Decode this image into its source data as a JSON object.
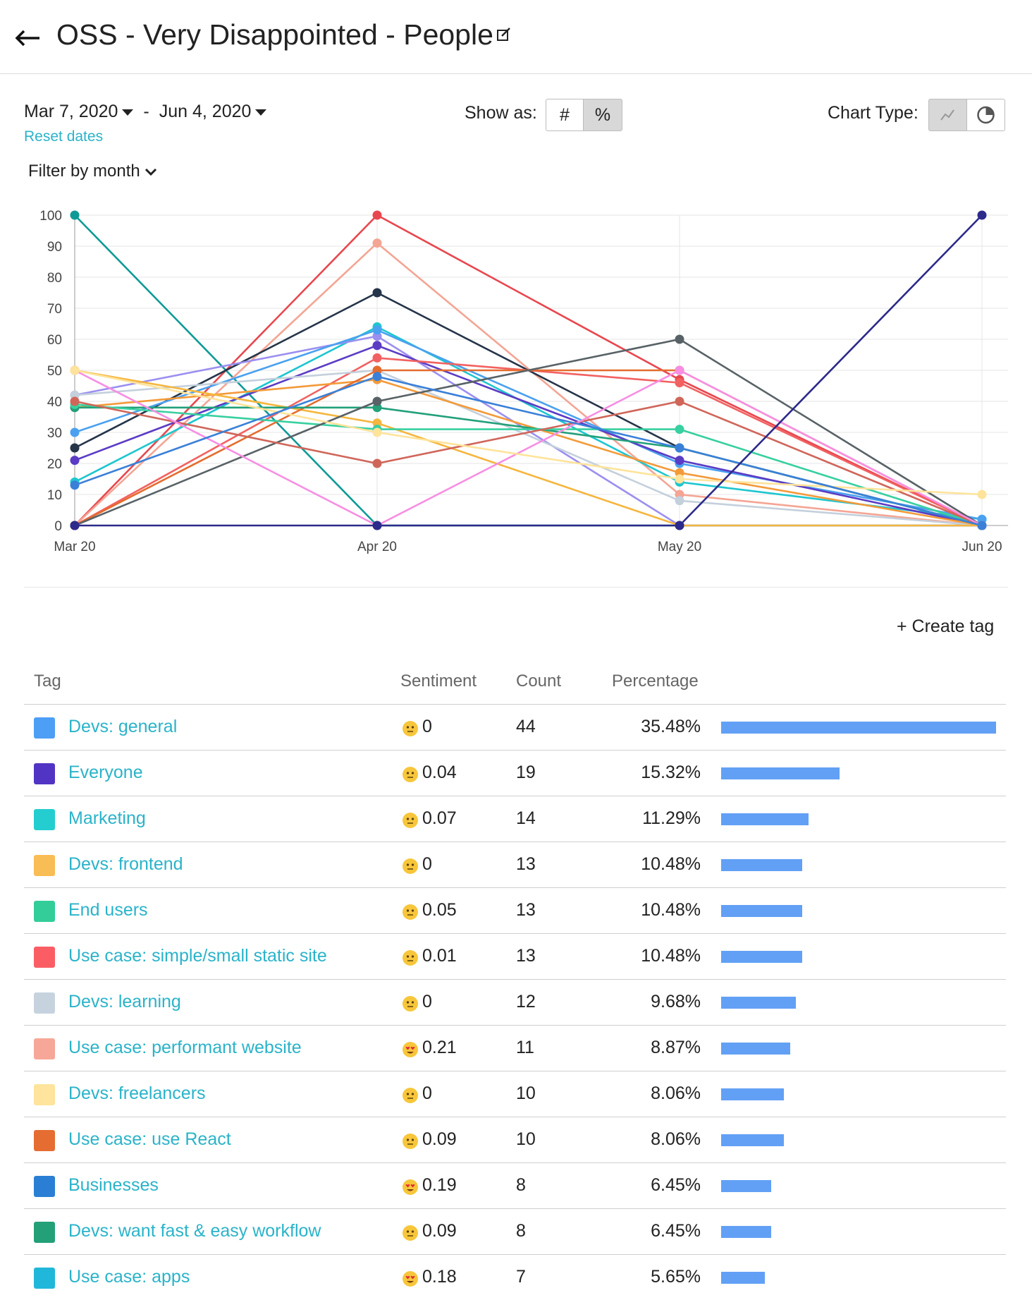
{
  "header": {
    "title": "OSS - Very Disappointed - People",
    "back_icon": "arrow-left-icon",
    "edit_icon": "edit-icon"
  },
  "controls": {
    "start_date": "Mar 7, 2020",
    "date_separator": "-",
    "end_date": "Jun 4, 2020",
    "reset_label": "Reset dates",
    "show_as_label": "Show as:",
    "show_as_options": [
      "#",
      "%"
    ],
    "show_as_selected": "%",
    "chart_type_label": "Chart Type:",
    "chart_type_options": [
      "line-chart-icon",
      "pie-chart-icon"
    ],
    "chart_type_selected": "line-chart-icon",
    "filter_label": "Filter by month"
  },
  "chart_data": {
    "type": "line",
    "x": [
      "Mar 20",
      "Apr 20",
      "May 20",
      "Jun 20"
    ],
    "ylim": [
      0,
      100
    ],
    "yticks": [
      0,
      10,
      20,
      30,
      40,
      50,
      60,
      70,
      80,
      90,
      100
    ],
    "grid": true,
    "series": [
      {
        "color": "#0e9a96",
        "values": [
          100,
          0,
          0,
          0
        ]
      },
      {
        "color": "#e8474f",
        "values": [
          0,
          100,
          47,
          0
        ]
      },
      {
        "color": "#f4a594",
        "values": [
          0,
          91,
          10,
          0
        ]
      },
      {
        "color": "#253449",
        "values": [
          25,
          75,
          25,
          0
        ]
      },
      {
        "color": "#1ec6cf",
        "values": [
          14,
          64,
          14,
          2
        ]
      },
      {
        "color": "#9b8ff0",
        "values": [
          42,
          61,
          0,
          0
        ]
      },
      {
        "color": "#4aa1f0",
        "values": [
          30,
          63,
          20,
          2
        ]
      },
      {
        "color": "#5b3cc4",
        "values": [
          21,
          58,
          21,
          0
        ]
      },
      {
        "color": "#f26161",
        "values": [
          0,
          54,
          46,
          0
        ]
      },
      {
        "color": "#c4d0dc",
        "values": [
          42,
          50,
          8,
          0
        ]
      },
      {
        "color": "#f39a3a",
        "values": [
          38,
          47,
          17,
          0
        ]
      },
      {
        "color": "#f5b63e",
        "values": [
          50,
          33,
          0,
          0
        ]
      },
      {
        "color": "#e46c2e",
        "values": [
          0,
          50,
          50,
          0
        ]
      },
      {
        "color": "#22a07a",
        "values": [
          38,
          38,
          25,
          0
        ]
      },
      {
        "color": "#38d0a0",
        "values": [
          39,
          31,
          31,
          0
        ]
      },
      {
        "color": "#586266",
        "values": [
          0,
          40,
          60,
          0
        ]
      },
      {
        "color": "#d0665a",
        "values": [
          40,
          20,
          40,
          0
        ]
      },
      {
        "color": "#f78ee3",
        "values": [
          50,
          0,
          50,
          0
        ]
      },
      {
        "color": "#fee39a",
        "values": [
          50,
          30,
          15,
          10
        ]
      },
      {
        "color": "#3a80d8",
        "values": [
          13,
          48,
          25,
          0
        ]
      },
      {
        "color": "#2c2a8a",
        "values": [
          0,
          0,
          0,
          100
        ]
      }
    ]
  },
  "table": {
    "create_tag_label": "+ Create tag",
    "headers": {
      "tag": "Tag",
      "sentiment": "Sentiment",
      "count": "Count",
      "percentage": "Percentage"
    },
    "rows": [
      {
        "tag": "Devs: general",
        "color": "#4d9ef5",
        "emoji": "neutral-face",
        "sentiment": "0",
        "count": "44",
        "percentage": "35.48%",
        "pct_value": 35.48
      },
      {
        "tag": "Everyone",
        "color": "#5134c4",
        "emoji": "neutral-face",
        "sentiment": "0.04",
        "count": "19",
        "percentage": "15.32%",
        "pct_value": 15.32
      },
      {
        "tag": "Marketing",
        "color": "#23cdd0",
        "emoji": "neutral-face",
        "sentiment": "0.07",
        "count": "14",
        "percentage": "11.29%",
        "pct_value": 11.29
      },
      {
        "tag": "Devs: frontend",
        "color": "#f9bd55",
        "emoji": "neutral-face",
        "sentiment": "0",
        "count": "13",
        "percentage": "10.48%",
        "pct_value": 10.48
      },
      {
        "tag": "End users",
        "color": "#33cd9a",
        "emoji": "neutral-face",
        "sentiment": "0.05",
        "count": "13",
        "percentage": "10.48%",
        "pct_value": 10.48
      },
      {
        "tag": "Use case: simple/small static site",
        "color": "#fa5e64",
        "emoji": "neutral-face",
        "sentiment": "0.01",
        "count": "13",
        "percentage": "10.48%",
        "pct_value": 10.48
      },
      {
        "tag": "Devs: learning",
        "color": "#c6d3df",
        "emoji": "neutral-face",
        "sentiment": "0",
        "count": "12",
        "percentage": "9.68%",
        "pct_value": 9.68
      },
      {
        "tag": "Use case: performant website",
        "color": "#f7a797",
        "emoji": "heart-eyes",
        "sentiment": "0.21",
        "count": "11",
        "percentage": "8.87%",
        "pct_value": 8.87
      },
      {
        "tag": "Devs: freelancers",
        "color": "#fee49c",
        "emoji": "neutral-face",
        "sentiment": "0",
        "count": "10",
        "percentage": "8.06%",
        "pct_value": 8.06
      },
      {
        "tag": "Use case: use React",
        "color": "#e56d31",
        "emoji": "neutral-face",
        "sentiment": "0.09",
        "count": "10",
        "percentage": "8.06%",
        "pct_value": 8.06
      },
      {
        "tag": "Businesses",
        "color": "#2a7fd4",
        "emoji": "heart-eyes",
        "sentiment": "0.19",
        "count": "8",
        "percentage": "6.45%",
        "pct_value": 6.45
      },
      {
        "tag": "Devs: want fast & easy workflow",
        "color": "#23a078",
        "emoji": "neutral-face",
        "sentiment": "0.09",
        "count": "8",
        "percentage": "6.45%",
        "pct_value": 6.45
      },
      {
        "tag": "Use case: apps",
        "color": "#20b7da",
        "emoji": "heart-eyes",
        "sentiment": "0.18",
        "count": "7",
        "percentage": "5.65%",
        "pct_value": 5.65
      }
    ]
  }
}
